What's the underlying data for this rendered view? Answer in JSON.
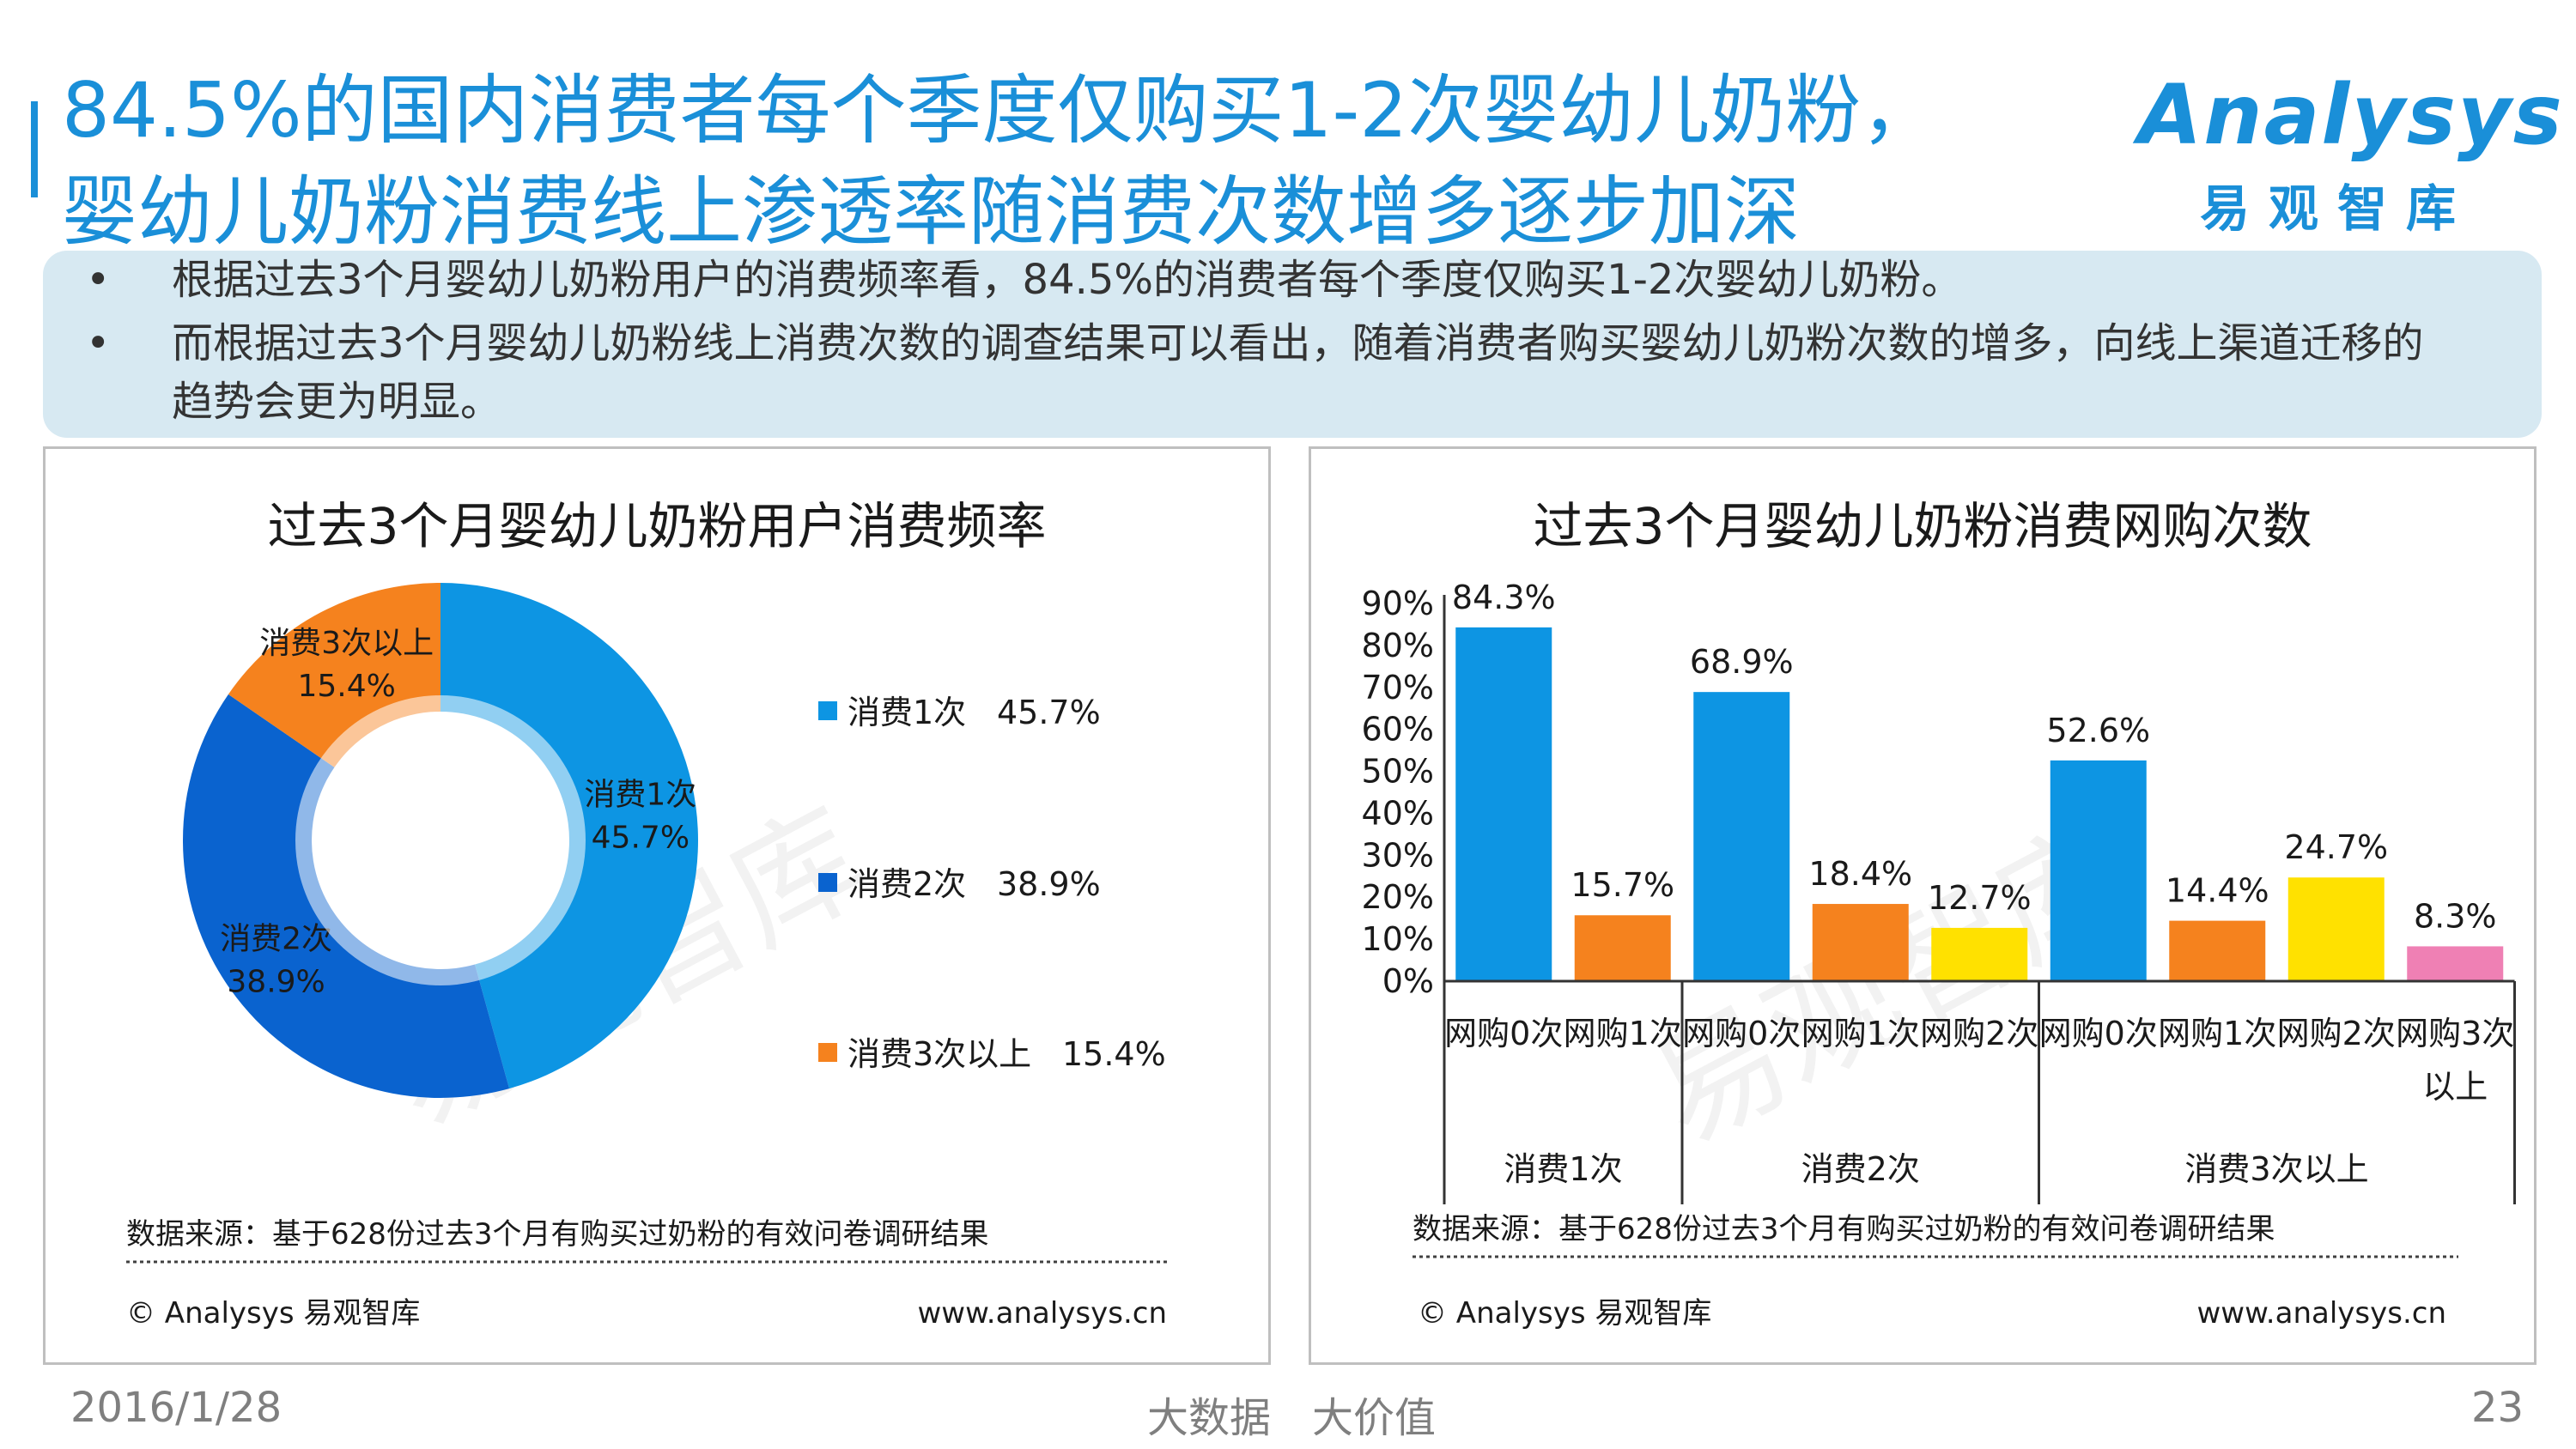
{
  "title": {
    "line1": "84.5%的国内消费者每个季度仅购买1-2次婴幼儿奶粉，",
    "line2": "婴幼儿奶粉消费线上渗透率随消费次数增多逐步加深"
  },
  "logo": {
    "word": "Analysys",
    "cn": "易观智库"
  },
  "summary": {
    "bullets": [
      "根据过去3个月婴幼儿奶粉用户的消费频率看，84.5%的消费者每个季度仅购买1-2次婴幼儿奶粉。",
      "而根据过去3个月婴幼儿奶粉线上消费次数的调查结果可以看出，随着消费者购买婴幼儿奶粉次数的增多，向线上渠道迁移的",
      "趋势会更为明显。"
    ],
    "bullet_symbol": "•"
  },
  "watermark": "易观智库",
  "left_chart": {
    "source": "数据来源：基于628份过去3个月有购买过奶粉的有效问卷调研结果",
    "copyright": "© Analysys 易观智库",
    "url": "www.analysys.cn"
  },
  "right_chart": {
    "source": "数据来源：基于628份过去3个月有购买过奶粉的有效问卷调研结果",
    "copyright": "© Analysys 易观智库",
    "url": "www.analysys.cn"
  },
  "footer": {
    "date": "2016/1/28",
    "slogan": "大数据　大价值",
    "page": "23"
  },
  "chart_data": [
    {
      "type": "pie",
      "title": "过去3个月婴幼儿奶粉用户消费频率",
      "categories": [
        "消费1次",
        "消费2次",
        "消费3次以上"
      ],
      "values": [
        45.7,
        38.9,
        15.4
      ],
      "value_labels": [
        "45.7%",
        "38.9%",
        "15.4%"
      ],
      "colors": [
        "#0d95e3",
        "#0a63cf",
        "#f5821e"
      ],
      "legend": [
        {
          "label": "消费1次",
          "value": "45.7%"
        },
        {
          "label": "消费2次",
          "value": "38.9%"
        },
        {
          "label": "消费3次以上",
          "value": "15.4%"
        }
      ],
      "legend_placement": "right"
    },
    {
      "type": "bar",
      "title": "过去3个月婴幼儿奶粉消费网购次数",
      "ylim": [
        0,
        90
      ],
      "yticks": [
        "0%",
        "10%",
        "20%",
        "30%",
        "40%",
        "50%",
        "60%",
        "70%",
        "80%",
        "90%"
      ],
      "grid": false,
      "groups": [
        {
          "label": "消费1次",
          "bars": [
            {
              "label": "网购0次",
              "value": 84.3,
              "value_label": "84.3%",
              "color": "#0d95e3"
            },
            {
              "label": "网购1次",
              "value": 15.7,
              "value_label": "15.7%",
              "color": "#f5821e"
            }
          ]
        },
        {
          "label": "消费2次",
          "bars": [
            {
              "label": "网购0次",
              "value": 68.9,
              "value_label": "68.9%",
              "color": "#0d95e3"
            },
            {
              "label": "网购1次",
              "value": 18.4,
              "value_label": "18.4%",
              "color": "#f5821e"
            },
            {
              "label": "网购2次",
              "value": 12.7,
              "value_label": "12.7%",
              "color": "#ffe100"
            }
          ]
        },
        {
          "label": "消费3次以上",
          "bars": [
            {
              "label": "网购0次",
              "value": 52.6,
              "value_label": "52.6%",
              "color": "#0d95e3"
            },
            {
              "label": "网购1次",
              "value": 14.4,
              "value_label": "14.4%",
              "color": "#f5821e"
            },
            {
              "label": "网购2次",
              "value": 24.7,
              "value_label": "24.7%",
              "color": "#ffe100"
            },
            {
              "label": "网购3次以上",
              "value": 8.3,
              "value_label": "8.3%",
              "color": "#ef80b4"
            }
          ]
        }
      ]
    }
  ]
}
